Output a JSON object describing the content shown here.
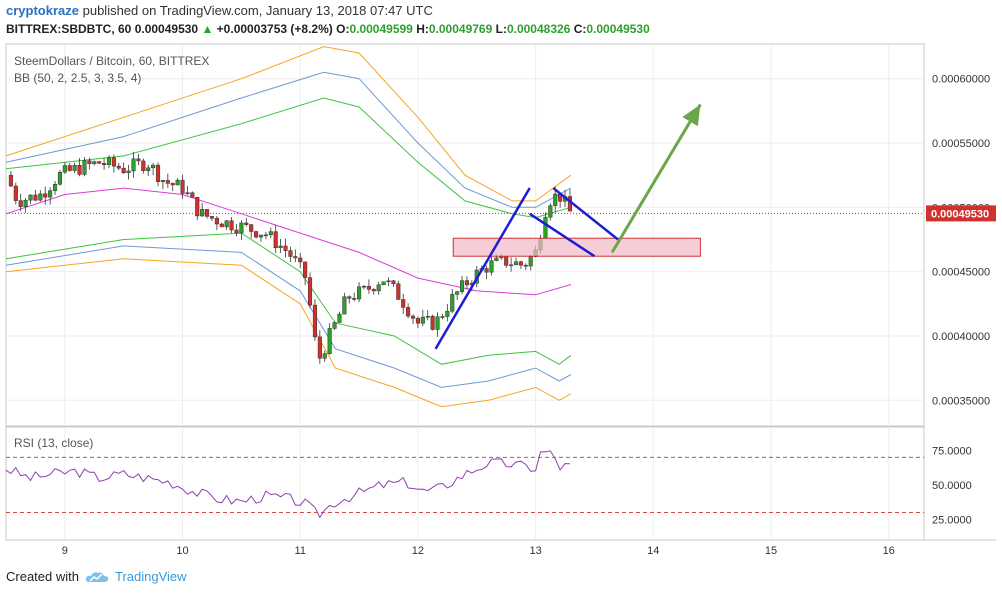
{
  "header": {
    "author": "cryptokraze",
    "published_text": "published on TradingView.com, January 13, 2018 07:47 UTC"
  },
  "quote": {
    "symbol": "BITTREX:SBDBTC, 60",
    "last": "0.00049530",
    "change_arrow": "▲",
    "change": "+0.00003753 (+8.2%)",
    "o_label": "O:",
    "o": "0.00049599",
    "h_label": "H:",
    "h": "0.00049769",
    "l_label": "L:",
    "l": "0.00048326",
    "c_label": "C:",
    "c": "0.00049530"
  },
  "chart_data": {
    "type": "candlestick",
    "title": "SteemDollars / Bitcoin, 60, BITTREX",
    "indicator_bb": "BB (50, 2, 2.5, 3, 3.5, 4)",
    "indicator_rsi": "RSI (13, close)",
    "x_ticks": [
      "9",
      "10",
      "11",
      "12",
      "13",
      "14",
      "15",
      "16"
    ],
    "x_tick_values": [
      9,
      10,
      11,
      12,
      13,
      14,
      15,
      16
    ],
    "x_range": [
      8.5,
      16.3
    ],
    "y_ticks": [
      "0.00060000",
      "0.00055000",
      "0.00050000",
      "0.00045000",
      "0.00040000",
      "0.00035000"
    ],
    "y_tick_values": [
      0.0006,
      0.00055,
      0.0005,
      0.00045,
      0.0004,
      0.00035
    ],
    "y_range": [
      0.00033,
      0.000627
    ],
    "last_price_label": "0.00049530",
    "last_price": 0.0004953,
    "rsi_ticks": [
      "75.0000",
      "50.0000",
      "25.0000"
    ],
    "rsi_tick_values": [
      75,
      50,
      25
    ],
    "rsi_range": [
      10,
      92
    ],
    "rsi_levels": [
      70,
      30
    ],
    "price_series": [
      [
        8.5,
        0.000525
      ],
      [
        8.6,
        0.000505
      ],
      [
        8.8,
        0.00051
      ],
      [
        8.95,
        0.000525
      ],
      [
        9.1,
        0.00053
      ],
      [
        9.3,
        0.000535
      ],
      [
        9.5,
        0.00053
      ],
      [
        9.7,
        0.000535
      ],
      [
        9.85,
        0.00052
      ],
      [
        10.0,
        0.000515
      ],
      [
        10.15,
        0.000495
      ],
      [
        10.3,
        0.00049
      ],
      [
        10.5,
        0.000485
      ],
      [
        10.7,
        0.00048
      ],
      [
        10.9,
        0.000465
      ],
      [
        11.05,
        0.000445
      ],
      [
        11.15,
        0.00038
      ],
      [
        11.25,
        0.0004
      ],
      [
        11.4,
        0.00043
      ],
      [
        11.55,
        0.000435
      ],
      [
        11.7,
        0.000445
      ],
      [
        11.85,
        0.00043
      ],
      [
        12.0,
        0.00041
      ],
      [
        12.15,
        0.00041
      ],
      [
        12.3,
        0.00043
      ],
      [
        12.45,
        0.000445
      ],
      [
        12.6,
        0.000455
      ],
      [
        12.75,
        0.000458
      ],
      [
        12.9,
        0.000455
      ],
      [
        13.0,
        0.000465
      ],
      [
        13.1,
        0.000505
      ],
      [
        13.2,
        0.00051
      ],
      [
        13.3,
        0.000495
      ]
    ],
    "bb_basis": [
      [
        8.5,
        0.000495
      ],
      [
        9.0,
        0.000505
      ],
      [
        9.5,
        0.00051
      ],
      [
        10.0,
        0.000505
      ],
      [
        10.5,
        0.000495
      ],
      [
        11.0,
        0.000475
      ],
      [
        11.5,
        0.00046
      ],
      [
        12.0,
        0.00044
      ],
      [
        12.5,
        0.000435
      ],
      [
        13.0,
        0.000432
      ],
      [
        13.3,
        0.00044
      ]
    ],
    "bb_bands": [
      {
        "name": "upper4",
        "color": "#f5a623",
        "points": [
          [
            8.5,
            0.00054
          ],
          [
            9.5,
            0.00057
          ],
          [
            10.5,
            0.0006
          ],
          [
            11.2,
            0.000625
          ],
          [
            11.5,
            0.00062
          ],
          [
            12.0,
            0.00057
          ],
          [
            12.4,
            0.000525
          ],
          [
            12.8,
            0.000505
          ],
          [
            13.0,
            0.000505
          ],
          [
            13.3,
            0.000525
          ]
        ]
      },
      {
        "name": "upper3",
        "color": "#6c9ad6",
        "points": [
          [
            8.5,
            0.000535
          ],
          [
            9.5,
            0.000555
          ],
          [
            10.5,
            0.000585
          ],
          [
            11.2,
            0.000605
          ],
          [
            11.5,
            0.0006
          ],
          [
            12.0,
            0.00055
          ],
          [
            12.4,
            0.000515
          ],
          [
            12.8,
            0.0005
          ],
          [
            13.0,
            0.0005
          ],
          [
            13.3,
            0.000515
          ]
        ]
      },
      {
        "name": "upper2",
        "color": "#3fc43f",
        "points": [
          [
            8.5,
            0.00053
          ],
          [
            9.5,
            0.00054
          ],
          [
            10.5,
            0.000565
          ],
          [
            11.2,
            0.000585
          ],
          [
            11.5,
            0.000578
          ],
          [
            12.0,
            0.000535
          ],
          [
            12.4,
            0.000505
          ],
          [
            12.8,
            0.000495
          ],
          [
            13.0,
            0.000492
          ],
          [
            13.3,
            0.0005
          ]
        ]
      },
      {
        "name": "lower2",
        "color": "#3fc43f",
        "points": [
          [
            8.5,
            0.00046
          ],
          [
            9.5,
            0.000475
          ],
          [
            10.5,
            0.00048
          ],
          [
            11.0,
            0.00045
          ],
          [
            11.3,
            0.00041
          ],
          [
            11.8,
            0.0004
          ],
          [
            12.2,
            0.000378
          ],
          [
            12.6,
            0.000385
          ],
          [
            13.0,
            0.000388
          ],
          [
            13.2,
            0.000378
          ],
          [
            13.3,
            0.000385
          ]
        ]
      },
      {
        "name": "lower3",
        "color": "#6c9ad6",
        "points": [
          [
            8.5,
            0.000455
          ],
          [
            9.5,
            0.00047
          ],
          [
            10.5,
            0.000465
          ],
          [
            11.0,
            0.000435
          ],
          [
            11.3,
            0.00039
          ],
          [
            11.8,
            0.000375
          ],
          [
            12.2,
            0.00036
          ],
          [
            12.6,
            0.000365
          ],
          [
            13.0,
            0.000375
          ],
          [
            13.2,
            0.000365
          ],
          [
            13.3,
            0.00037
          ]
        ]
      },
      {
        "name": "lower4",
        "color": "#f5a623",
        "points": [
          [
            8.5,
            0.00045
          ],
          [
            9.5,
            0.00046
          ],
          [
            10.5,
            0.000455
          ],
          [
            11.0,
            0.000425
          ],
          [
            11.3,
            0.000375
          ],
          [
            11.8,
            0.00036
          ],
          [
            12.2,
            0.000345
          ],
          [
            12.6,
            0.00035
          ],
          [
            13.0,
            0.00036
          ],
          [
            13.2,
            0.00035
          ],
          [
            13.3,
            0.000355
          ]
        ]
      },
      {
        "name": "basis",
        "color": "#d63fd6",
        "points": [
          [
            8.5,
            0.000495
          ],
          [
            9.0,
            0.00051
          ],
          [
            9.5,
            0.000515
          ],
          [
            10.0,
            0.00051
          ],
          [
            10.5,
            0.000495
          ],
          [
            11.0,
            0.00048
          ],
          [
            11.5,
            0.000465
          ],
          [
            12.0,
            0.000445
          ],
          [
            12.5,
            0.000435
          ],
          [
            13.0,
            0.000432
          ],
          [
            13.3,
            0.00044
          ]
        ]
      }
    ],
    "rsi_series": [
      [
        8.5,
        62
      ],
      [
        8.7,
        55
      ],
      [
        8.9,
        58
      ],
      [
        9.1,
        60
      ],
      [
        9.3,
        55
      ],
      [
        9.5,
        58
      ],
      [
        9.7,
        55
      ],
      [
        9.9,
        52
      ],
      [
        10.1,
        45
      ],
      [
        10.3,
        40
      ],
      [
        10.5,
        38
      ],
      [
        10.7,
        42
      ],
      [
        10.9,
        40
      ],
      [
        11.05,
        36
      ],
      [
        11.15,
        28
      ],
      [
        11.3,
        38
      ],
      [
        11.5,
        44
      ],
      [
        11.7,
        50
      ],
      [
        11.9,
        52
      ],
      [
        12.05,
        45
      ],
      [
        12.2,
        48
      ],
      [
        12.4,
        58
      ],
      [
        12.6,
        66
      ],
      [
        12.8,
        65
      ],
      [
        13.0,
        62
      ],
      [
        13.05,
        75
      ],
      [
        13.15,
        72
      ],
      [
        13.2,
        63
      ],
      [
        13.3,
        64
      ]
    ],
    "annotations": {
      "flag_pole": [
        [
          12.15,
          0.00039
        ],
        [
          12.95,
          0.000515
        ]
      ],
      "flag_top": [
        [
          13.15,
          0.000515
        ],
        [
          13.7,
          0.000475
        ]
      ],
      "flag_bottom": [
        [
          12.95,
          0.000495
        ],
        [
          13.5,
          0.000462
        ]
      ],
      "target_arrow": [
        [
          13.65,
          0.000465
        ],
        [
          14.4,
          0.00058
        ]
      ],
      "support_zone": {
        "x": [
          12.3,
          14.4
        ],
        "y": [
          0.000462,
          0.000476
        ]
      }
    }
  },
  "footer": {
    "created_with": "Created with",
    "brand": "TradingView"
  },
  "colors": {
    "up": "#2ca02c",
    "down": "#d0312d",
    "flag": "#1d1dd6",
    "arrow": "#6ba64a",
    "zone_fill": "#f2b8c6",
    "zone_stroke": "#d0312d"
  }
}
